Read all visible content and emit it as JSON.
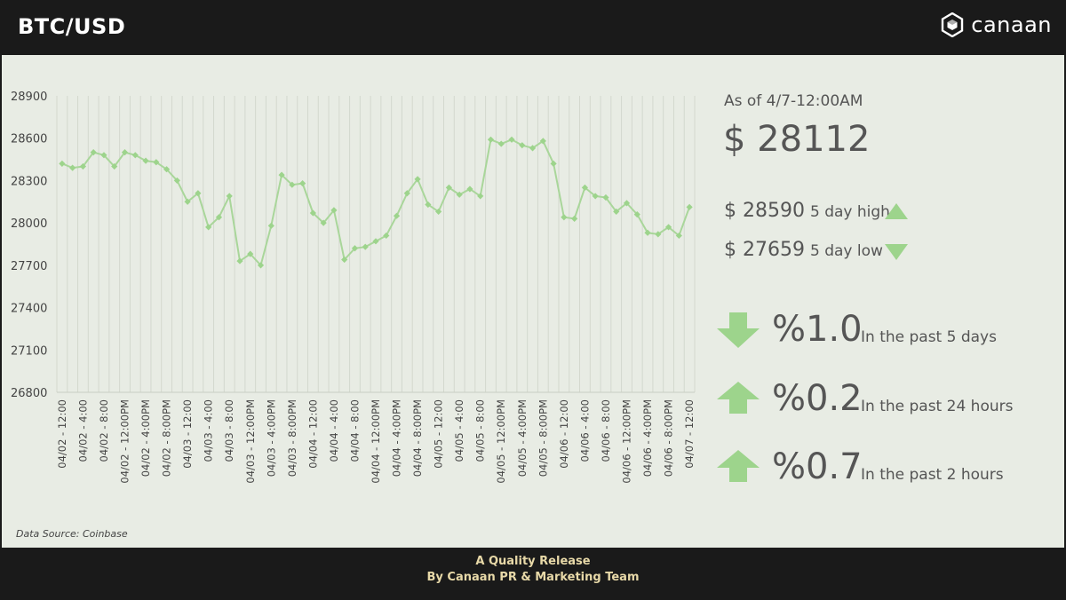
{
  "header": {
    "title": "BTC/USD",
    "brand": "canaan",
    "brand_icon": "hexagon-cube-logo-icon"
  },
  "stats": {
    "as_of": "As of 4/7-12:00AM",
    "price": "$ 28112",
    "high_value": "$ 28590",
    "high_label": "5 day high",
    "low_value": "$ 27659",
    "low_label": "5 day low",
    "changes": [
      {
        "direction": "down",
        "value": "%1.0",
        "label": "In the past 5 days"
      },
      {
        "direction": "up",
        "value": "%0.2",
        "label": "In the past 24 hours"
      },
      {
        "direction": "up",
        "value": "%0.7",
        "label": "In the past 2 hours"
      }
    ],
    "accent": "#9dd48c"
  },
  "source": "Data Source: Coinbase",
  "footer": {
    "line1": "A Quality Release",
    "line2": "By Canaan PR & Marketing Team"
  },
  "colors": {
    "line": "#a9d69a",
    "marker": "#9dd48c",
    "background": "#e8ece4",
    "frame": "#1a1a1a",
    "footer_text": "#e8d9a8"
  },
  "chart_data": {
    "type": "line",
    "title": "",
    "xlabel": "",
    "ylabel": "",
    "ylim": [
      26800,
      28900
    ],
    "yticks": [
      26800,
      27100,
      27400,
      27700,
      28000,
      28300,
      28600,
      28900
    ],
    "grid": "vertical",
    "categories": [
      "04/02 - 12:00",
      "04/02 - 2:00",
      "04/02 - 4:00",
      "04/02 - 6:00",
      "04/02 - 8:00",
      "04/02 - 10:00",
      "04/02 - 12:00PM",
      "04/02 - 2:00PM",
      "04/02 - 4:00PM",
      "04/02 - 6:00PM",
      "04/02 - 8:00PM",
      "04/02 - 10:00PM",
      "04/03 - 12:00",
      "04/03 - 2:00",
      "04/03 - 4:00",
      "04/03 - 6:00",
      "04/03 - 8:00",
      "04/03 - 10:00",
      "04/03 - 12:00PM",
      "04/03 - 2:00PM",
      "04/03 - 4:00PM",
      "04/03 - 6:00PM",
      "04/03 - 8:00PM",
      "04/03 - 10:00PM",
      "04/04 - 12:00",
      "04/04 - 2:00",
      "04/04 - 4:00",
      "04/04 - 6:00",
      "04/04 - 8:00",
      "04/04 - 10:00",
      "04/04 - 12:00PM",
      "04/04 - 2:00PM",
      "04/04 - 4:00PM",
      "04/04 - 6:00PM",
      "04/04 - 8:00PM",
      "04/04 - 10:00PM",
      "04/05 - 12:00",
      "04/05 - 2:00",
      "04/05 - 4:00",
      "04/05 - 6:00",
      "04/05 - 8:00",
      "04/05 - 10:00",
      "04/05 - 12:00PM",
      "04/05 - 2:00PM",
      "04/05 - 4:00PM",
      "04/05 - 6:00PM",
      "04/05 - 8:00PM",
      "04/05 - 10:00PM",
      "04/06 - 12:00",
      "04/06 - 2:00",
      "04/06 - 4:00",
      "04/06 - 6:00",
      "04/06 - 8:00",
      "04/06 - 10:00",
      "04/06 - 12:00PM",
      "04/06 - 2:00PM",
      "04/06 - 4:00PM",
      "04/06 - 6:00PM",
      "04/06 - 8:00PM",
      "04/06 - 10:00PM",
      "04/07 - 12:00"
    ],
    "tick_labels_shown": [
      "04/02 - 12:00",
      "04/02 - 4:00",
      "04/02 - 8:00",
      "04/02 - 12:00PM",
      "04/02 - 4:00PM",
      "04/02 - 8:00PM",
      "04/03 - 12:00",
      "04/03 - 4:00",
      "04/03 - 8:00",
      "04/03 - 12:00PM",
      "04/03 - 4:00PM",
      "04/03 - 8:00PM",
      "04/04 - 12:00",
      "04/04 - 4:00",
      "04/04 - 8:00",
      "04/04 - 12:00PM",
      "04/04 - 4:00PM",
      "04/04 - 8:00PM",
      "04/05 - 12:00",
      "04/05 - 4:00",
      "04/05 - 8:00",
      "04/05 - 12:00PM",
      "04/05 - 4:00PM",
      "04/05 - 8:00PM",
      "04/06 - 12:00",
      "04/06 - 4:00",
      "04/06 - 8:00",
      "04/06 - 12:00PM",
      "04/06 - 4:00PM",
      "04/06 - 8:00PM",
      "04/07 - 12:00"
    ],
    "series": [
      {
        "values": [
          28420,
          28390,
          28400,
          28500,
          28480,
          28400,
          28500,
          28480,
          28440,
          28430,
          28380,
          28300,
          28150,
          28210,
          27970,
          28040,
          28190,
          27730,
          27780,
          27700,
          27980,
          28340,
          28270,
          28280,
          28070,
          28000,
          28090,
          27740,
          27820,
          27830,
          27870,
          27910,
          28050,
          28210,
          28310,
          28130,
          28080,
          28250,
          28200,
          28240,
          28190,
          28590,
          28560,
          28590,
          28550,
          28530,
          28580,
          28420,
          28040,
          28030,
          28250,
          28190,
          28180,
          28080,
          28140,
          28060,
          27930,
          27920,
          27970,
          27910,
          28112
        ]
      }
    ]
  }
}
